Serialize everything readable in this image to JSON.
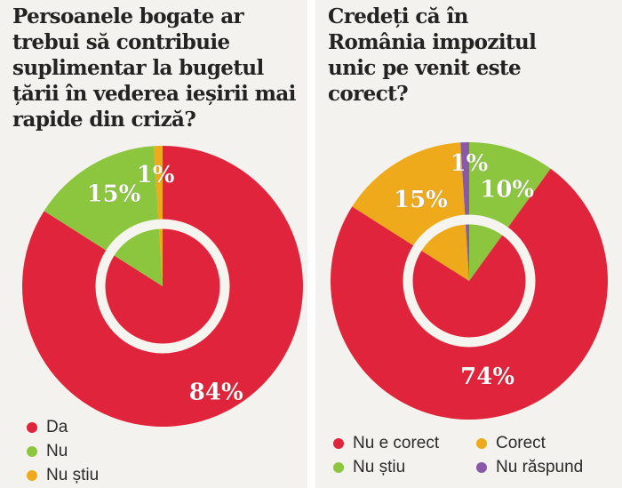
{
  "colors": {
    "red": "#e0243b",
    "green": "#8cc63f",
    "orange": "#eeaa1a",
    "purple": "#8a58a8",
    "panel_bg": "#f3f2ee",
    "ring": "#f6f4ee"
  },
  "chart_data": [
    {
      "type": "pie",
      "title": "Persoanele bogate ar trebui să contribuie suplimentar la bugetul țării în vederea ieșirii mai rapide din criză?",
      "slices": [
        {
          "label": "Da",
          "value": 84,
          "display": "84%",
          "color": "#e0243b"
        },
        {
          "label": "Nu",
          "value": 15,
          "display": "15%",
          "color": "#8cc63f"
        },
        {
          "label": "Nu știu",
          "value": 1,
          "display": "1%",
          "color": "#eeaa1a"
        }
      ],
      "legend": [
        "Da",
        "Nu",
        "Nu știu"
      ]
    },
    {
      "type": "pie",
      "title": "Credeți că în România impozitul unic pe venit este corect?",
      "slices": [
        {
          "label": "Nu știu",
          "value": 10,
          "display": "10%",
          "color": "#8cc63f"
        },
        {
          "label": "Nu e corect",
          "value": 74,
          "display": "74%",
          "color": "#e0243b"
        },
        {
          "label": "Corect",
          "value": 15,
          "display": "15%",
          "color": "#eeaa1a"
        },
        {
          "label": "Nu răspund",
          "value": 1,
          "display": "1%",
          "color": "#8a58a8"
        }
      ],
      "legend": [
        "Nu e corect",
        "Corect",
        "Nu știu",
        "Nu răspund"
      ]
    }
  ]
}
